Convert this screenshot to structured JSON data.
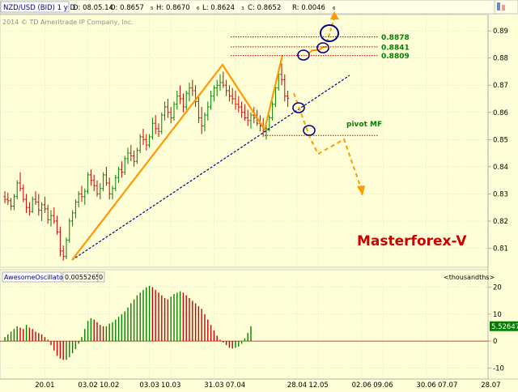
{
  "header": {
    "symbol": "NZD/USD (BID) 1 y D",
    "date": "D: 08.05.14",
    "open": "O: 0.8657",
    "open_sub": "5",
    "high": "H: 0.8670",
    "high_sub": "6",
    "low": "L: 0.8624",
    "low_sub": "3",
    "close": "C: 0.8652",
    "range": "R: 0.0046",
    "range_sub": "6",
    "copyright": "2014 © TD Ameritrade IP Company, Inc.",
    "tab_icon": "chart-tab-icon"
  },
  "indicator_header": {
    "name": "AwesomeOscillator",
    "value": "0.0055265",
    "extra": "0",
    "units": "<thousandths>"
  },
  "annotations": {
    "brand": "Masterforex-V",
    "pivot_label": "pivot MF",
    "targets": [
      {
        "label": "0.8878",
        "price": 0.8878
      },
      {
        "label": "0.8841",
        "price": 0.8841
      },
      {
        "label": "0.8809",
        "price": 0.8809
      }
    ],
    "pivot_price": 0.8515,
    "target_color": "#cc0000",
    "projection_color": "#ff9900",
    "trendline_color": "#000080",
    "label_green": "#008000"
  },
  "colors": {
    "background": "#ffffd7",
    "bull": "#008000",
    "bear": "#cc0000",
    "pattern": "#ff9900",
    "grid": "#c8c8c8"
  },
  "chart_data": [
    {
      "type": "candlestick",
      "title": "NZD/USD (BID) 1 y D",
      "y_ticks": [
        "0.89",
        "0.88",
        "0.87",
        "0.86",
        "0.85",
        "0.84",
        "0.83",
        "0.82",
        "0.81"
      ],
      "y_tick_values": [
        0.89,
        0.88,
        0.87,
        0.86,
        0.85,
        0.84,
        0.83,
        0.82,
        0.81
      ],
      "ylim": [
        0.803,
        0.896
      ],
      "x_ticks": [
        "20.01",
        "03.02",
        "10.02",
        "03.03",
        "10.03",
        "31.03",
        "07.04",
        "28.04",
        "12.05",
        "02.06",
        "09.06",
        "30.06",
        "07.07",
        "28.07"
      ],
      "x_tick_bars": [
        13,
        27,
        34,
        47,
        54,
        68,
        75,
        95,
        102,
        116,
        123,
        137,
        144,
        158
      ],
      "grid": true,
      "candles": [
        [
          0.829,
          0.831,
          0.8265,
          0.828
        ],
        [
          0.828,
          0.8305,
          0.826,
          0.8275
        ],
        [
          0.8275,
          0.8285,
          0.824,
          0.8255
        ],
        [
          0.8255,
          0.83,
          0.824,
          0.829
        ],
        [
          0.829,
          0.835,
          0.828,
          0.834
        ],
        [
          0.834,
          0.838,
          0.831,
          0.832
        ],
        [
          0.832,
          0.8335,
          0.827,
          0.828
        ],
        [
          0.828,
          0.83,
          0.823,
          0.825
        ],
        [
          0.825,
          0.827,
          0.822,
          0.8235
        ],
        [
          0.8235,
          0.829,
          0.823,
          0.828
        ],
        [
          0.828,
          0.831,
          0.826,
          0.827
        ],
        [
          0.827,
          0.83,
          0.822,
          0.824
        ],
        [
          0.824,
          0.827,
          0.82,
          0.826
        ],
        [
          0.826,
          0.829,
          0.823,
          0.8245
        ],
        [
          0.8245,
          0.826,
          0.819,
          0.8205
        ],
        [
          0.8205,
          0.824,
          0.818,
          0.822
        ],
        [
          0.822,
          0.825,
          0.819,
          0.82
        ],
        [
          0.82,
          0.822,
          0.815,
          0.816
        ],
        [
          0.816,
          0.818,
          0.807,
          0.809
        ],
        [
          0.809,
          0.811,
          0.8055,
          0.807
        ],
        [
          0.807,
          0.814,
          0.806,
          0.813
        ],
        [
          0.813,
          0.821,
          0.812,
          0.82
        ],
        [
          0.82,
          0.824,
          0.818,
          0.823
        ],
        [
          0.823,
          0.828,
          0.821,
          0.827
        ],
        [
          0.827,
          0.831,
          0.825,
          0.83
        ],
        [
          0.83,
          0.833,
          0.827,
          0.829
        ],
        [
          0.829,
          0.832,
          0.826,
          0.831
        ],
        [
          0.831,
          0.838,
          0.83,
          0.837
        ],
        [
          0.837,
          0.839,
          0.833,
          0.835
        ],
        [
          0.835,
          0.837,
          0.831,
          0.833
        ],
        [
          0.833,
          0.835,
          0.829,
          0.83
        ],
        [
          0.83,
          0.834,
          0.828,
          0.832
        ],
        [
          0.832,
          0.838,
          0.831,
          0.837
        ],
        [
          0.837,
          0.84,
          0.833,
          0.834
        ],
        [
          0.834,
          0.836,
          0.828,
          0.83
        ],
        [
          0.83,
          0.833,
          0.828,
          0.832
        ],
        [
          0.832,
          0.837,
          0.831,
          0.836
        ],
        [
          0.836,
          0.84,
          0.834,
          0.839
        ],
        [
          0.839,
          0.842,
          0.836,
          0.838
        ],
        [
          0.838,
          0.844,
          0.837,
          0.843
        ],
        [
          0.843,
          0.847,
          0.841,
          0.845
        ],
        [
          0.845,
          0.848,
          0.842,
          0.844
        ],
        [
          0.844,
          0.846,
          0.84,
          0.842
        ],
        [
          0.842,
          0.847,
          0.841,
          0.846
        ],
        [
          0.846,
          0.852,
          0.845,
          0.851
        ],
        [
          0.851,
          0.854,
          0.848,
          0.85
        ],
        [
          0.85,
          0.852,
          0.846,
          0.848
        ],
        [
          0.848,
          0.852,
          0.847,
          0.851
        ],
        [
          0.851,
          0.858,
          0.85,
          0.856
        ],
        [
          0.856,
          0.859,
          0.852,
          0.854
        ],
        [
          0.854,
          0.856,
          0.851,
          0.853
        ],
        [
          0.853,
          0.86,
          0.852,
          0.859
        ],
        [
          0.859,
          0.864,
          0.857,
          0.862
        ],
        [
          0.862,
          0.865,
          0.858,
          0.86
        ],
        [
          0.86,
          0.862,
          0.856,
          0.858
        ],
        [
          0.858,
          0.864,
          0.857,
          0.863
        ],
        [
          0.863,
          0.868,
          0.861,
          0.866
        ],
        [
          0.866,
          0.87,
          0.863,
          0.865
        ],
        [
          0.865,
          0.867,
          0.86,
          0.862
        ],
        [
          0.862,
          0.868,
          0.861,
          0.867
        ],
        [
          0.867,
          0.871,
          0.864,
          0.869
        ],
        [
          0.869,
          0.872,
          0.866,
          0.868
        ],
        [
          0.868,
          0.87,
          0.862,
          0.864
        ],
        [
          0.864,
          0.866,
          0.856,
          0.858
        ],
        [
          0.858,
          0.862,
          0.852,
          0.855
        ],
        [
          0.855,
          0.86,
          0.853,
          0.859
        ],
        [
          0.859,
          0.864,
          0.857,
          0.862
        ],
        [
          0.862,
          0.868,
          0.861,
          0.866
        ],
        [
          0.866,
          0.87,
          0.864,
          0.869
        ],
        [
          0.869,
          0.872,
          0.866,
          0.87
        ],
        [
          0.87,
          0.874,
          0.868,
          0.871
        ],
        [
          0.871,
          0.875,
          0.869,
          0.87
        ],
        [
          0.87,
          0.872,
          0.866,
          0.868
        ],
        [
          0.868,
          0.87,
          0.864,
          0.866
        ],
        [
          0.866,
          0.869,
          0.863,
          0.865
        ],
        [
          0.865,
          0.868,
          0.861,
          0.863
        ],
        [
          0.863,
          0.866,
          0.86,
          0.862
        ],
        [
          0.862,
          0.864,
          0.858,
          0.86
        ],
        [
          0.86,
          0.863,
          0.857,
          0.858
        ],
        [
          0.858,
          0.861,
          0.855,
          0.857
        ],
        [
          0.857,
          0.86,
          0.854,
          0.859
        ],
        [
          0.859,
          0.862,
          0.856,
          0.858
        ],
        [
          0.858,
          0.861,
          0.855,
          0.856
        ],
        [
          0.856,
          0.859,
          0.853,
          0.855
        ],
        [
          0.855,
          0.858,
          0.851,
          0.853
        ],
        [
          0.853,
          0.856,
          0.85,
          0.854
        ],
        [
          0.854,
          0.859,
          0.853,
          0.858
        ],
        [
          0.858,
          0.864,
          0.857,
          0.863
        ],
        [
          0.863,
          0.87,
          0.862,
          0.869
        ],
        [
          0.869,
          0.876,
          0.868,
          0.874
        ],
        [
          0.874,
          0.878,
          0.87,
          0.872
        ],
        [
          0.872,
          0.874,
          0.864,
          0.866
        ],
        [
          0.866,
          0.868,
          0.862,
          0.8652
        ]
      ]
    },
    {
      "type": "bar",
      "title": "AwesomeOscillator",
      "ylabel": "<thousandths>",
      "y_ticks": [
        "20",
        "10",
        "0",
        "-10"
      ],
      "y_tick_values": [
        20,
        10,
        0,
        -10
      ],
      "ylim": [
        -13.5,
        22
      ],
      "last_value_label": "5.52647",
      "last_value": 5.52647,
      "values": [
        1.5,
        2.5,
        3.5,
        4.5,
        5.5,
        5.0,
        4.5,
        6.0,
        5.0,
        4.5,
        3.5,
        3.0,
        2.5,
        1.5,
        0.5,
        -1.5,
        -3.5,
        -5.5,
        -6.5,
        -7.0,
        -7.0,
        -6.0,
        -4.5,
        -3.0,
        -1.0,
        1.5,
        4.5,
        7.5,
        8.5,
        8.0,
        7.0,
        6.0,
        5.5,
        5.5,
        6.5,
        7.0,
        8.0,
        9.0,
        10.0,
        11.0,
        12.5,
        14.0,
        15.5,
        17.0,
        18.0,
        19.0,
        20.0,
        20.5,
        20.0,
        19.0,
        18.0,
        17.0,
        16.0,
        15.5,
        16.5,
        17.5,
        18.0,
        18.5,
        18.0,
        17.0,
        16.0,
        15.0,
        14.0,
        13.0,
        12.0,
        10.0,
        8.0,
        6.0,
        4.0,
        2.0,
        0.5,
        -0.5,
        -1.5,
        -2.5,
        -2.8,
        -2.5,
        -2.0,
        -1.0,
        1.0,
        3.0,
        5.5
      ]
    }
  ]
}
